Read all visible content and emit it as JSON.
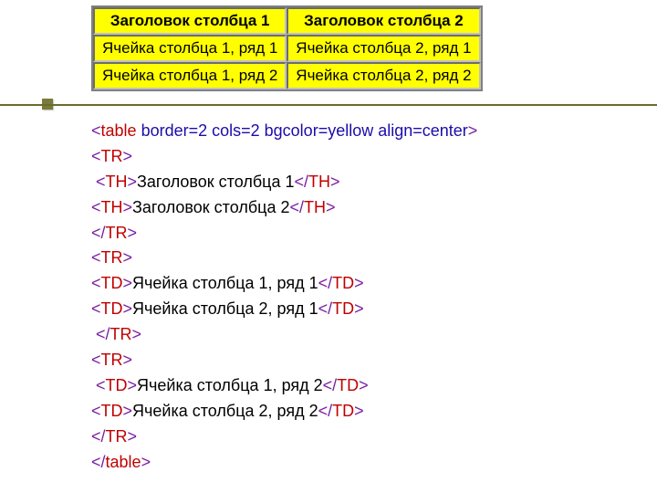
{
  "table": {
    "type": "table",
    "background_color": "#ffff00",
    "border_color": "#808080",
    "inner_border_color": "#c0c0c0",
    "text_color": "#000000",
    "header_fontsize": 17,
    "cell_fontsize": 17,
    "columns": [
      "Заголовок столбца 1",
      "Заголовок столбца 2"
    ],
    "rows": [
      [
        "Ячейка столбца 1, ряд 1",
        "Ячейка столбца 2, ряд 1"
      ],
      [
        "Ячейка столбца 1, ряд 2",
        "Ячейка столбца 2, ряд 2"
      ]
    ]
  },
  "code": {
    "fontsize": 18,
    "line_height": 1.55,
    "colors": {
      "angle": "#7a1fa2",
      "element": "#c00000",
      "attr": "#1a0dab",
      "text": "#000000"
    },
    "lines": [
      {
        "t": "open",
        "el": "table",
        "attrs": " border=2 cols=2 bgcolor=yellow align=center",
        "indent": ""
      },
      {
        "t": "open",
        "el": "TR",
        "attrs": "",
        "indent": ""
      },
      {
        "t": "wrap",
        "el": "TH",
        "txt": "Заголовок столбца 1",
        "indent": " "
      },
      {
        "t": "wrap",
        "el": "TH",
        "txt": "Заголовок столбца 2",
        "indent": ""
      },
      {
        "t": "close",
        "el": "TR",
        "indent": ""
      },
      {
        "t": "open",
        "el": "TR",
        "attrs": "",
        "indent": ""
      },
      {
        "t": "wrap",
        "el": "TD",
        "txt": "Ячейка столбца 1, ряд 1",
        "indent": ""
      },
      {
        "t": "wrap",
        "el": "TD",
        "txt": "Ячейка столбца 2, ряд 1",
        "indent": ""
      },
      {
        "t": "close",
        "el": "TR",
        "indent": " "
      },
      {
        "t": "open",
        "el": "TR",
        "attrs": "",
        "indent": ""
      },
      {
        "t": "wrap",
        "el": "TD",
        "txt": "Ячейка столбца 1, ряд 2",
        "indent": " "
      },
      {
        "t": "wrap",
        "el": "TD",
        "txt": "Ячейка столбца 2, ряд 2",
        "indent": ""
      },
      {
        "t": "close",
        "el": "TR",
        "indent": ""
      },
      {
        "t": "close",
        "el": "table",
        "indent": ""
      }
    ]
  },
  "decor": {
    "bullet_color": "#7a7a3a",
    "hr_color": "#6b6b2e"
  }
}
